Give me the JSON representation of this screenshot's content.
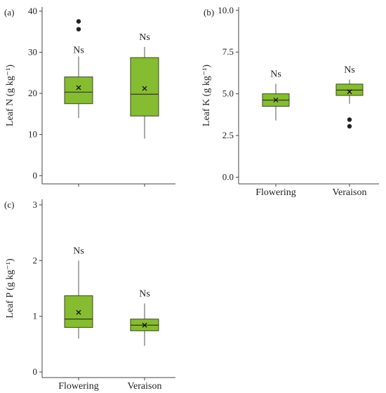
{
  "chart_data": [
    {
      "type": "box",
      "panel_label": "(a)",
      "ylabel": "Leaf N (g kg⁻¹)",
      "ylim": [
        -2,
        41
      ],
      "yticks": [
        0,
        10,
        20,
        30,
        40
      ],
      "tick_labels": [
        "0",
        "10",
        "20",
        "30",
        "40"
      ],
      "categories": [
        "Flowering",
        "Veraison"
      ],
      "show_x_labels": false,
      "box_color": "#86bc30",
      "boxes": [
        {
          "whisker_low": 14,
          "q1": 17.5,
          "median": 20.3,
          "q3": 24,
          "whisker_high": 29,
          "mean": 21.4,
          "outliers": [
            35.6,
            37.5
          ],
          "annotation": "Ns"
        },
        {
          "whisker_low": 9,
          "q1": 14.5,
          "median": 19.8,
          "q3": 28.7,
          "whisker_high": 31.3,
          "mean": 21.2,
          "outliers": [],
          "annotation": "Ns"
        }
      ]
    },
    {
      "type": "box",
      "panel_label": "(b)",
      "ylabel": "Leaf K (g kg⁻¹)",
      "ylim": [
        -0.4,
        10.2
      ],
      "yticks": [
        0,
        2.5,
        5,
        7.5,
        10
      ],
      "tick_labels": [
        "0.0",
        "2.5",
        "5.0",
        "7.5",
        "10.0"
      ],
      "categories": [
        "Flowering",
        "Veraison"
      ],
      "show_x_labels": true,
      "box_color": "#86bc30",
      "boxes": [
        {
          "whisker_low": 3.4,
          "q1": 4.25,
          "median": 4.62,
          "q3": 5.0,
          "whisker_high": 5.6,
          "mean": 4.63,
          "outliers": [],
          "annotation": "Ns"
        },
        {
          "whisker_low": 4.4,
          "q1": 4.9,
          "median": 5.22,
          "q3": 5.58,
          "whisker_high": 5.85,
          "mean": 5.12,
          "outliers": [
            3.45,
            3.05
          ],
          "annotation": "Ns"
        }
      ]
    },
    {
      "type": "box",
      "panel_label": "(c)",
      "ylabel": "Leaf P (g kg⁻¹)",
      "ylim": [
        -0.1,
        3.1
      ],
      "yticks": [
        0,
        1,
        2,
        3
      ],
      "tick_labels": [
        "0",
        "1",
        "2",
        "3"
      ],
      "categories": [
        "Flowering",
        "Veraison"
      ],
      "show_x_labels": true,
      "box_color": "#86bc30",
      "boxes": [
        {
          "whisker_low": 0.6,
          "q1": 0.8,
          "median": 0.95,
          "q3": 1.37,
          "whisker_high": 2.0,
          "mean": 1.07,
          "outliers": [],
          "annotation": "Ns"
        },
        {
          "whisker_low": 0.47,
          "q1": 0.74,
          "median": 0.84,
          "q3": 0.95,
          "whisker_high": 1.23,
          "mean": 0.84,
          "outliers": [],
          "annotation": "Ns"
        }
      ]
    }
  ]
}
